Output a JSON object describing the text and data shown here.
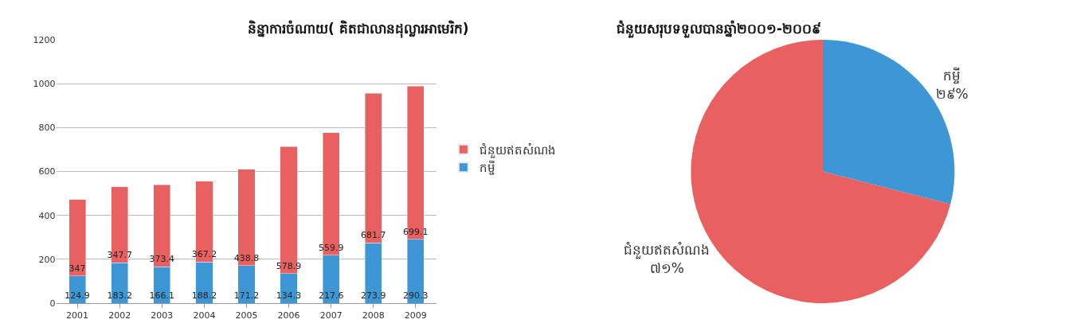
{
  "chart_data": [
    {
      "type": "bar",
      "title": "និន្នាការចំណាយ( គិតជាលានដុល្លារអាមេរិក)",
      "categories": [
        "2001",
        "2002",
        "2003",
        "2004",
        "2005",
        "2006",
        "2007",
        "2008",
        "2009"
      ],
      "stacked": true,
      "ylim": [
        0,
        1200
      ],
      "yticks": [
        0,
        200,
        400,
        600,
        800,
        1000,
        1200
      ],
      "grid": "y",
      "legend": "right",
      "data_labels": true,
      "series": [
        {
          "name": "កម្ចី",
          "color": "#3d97d4",
          "values": [
            124.9,
            183.2,
            166.1,
            188.2,
            171.2,
            134.3,
            217.6,
            273.9,
            290.3
          ]
        },
        {
          "name": "ជំនួយឥតសំណង",
          "color": "#e86060",
          "values": [
            347,
            347.7,
            373.4,
            367.2,
            438.8,
            578.9,
            559.9,
            681.7,
            699.1
          ]
        }
      ]
    },
    {
      "type": "pie",
      "title": "ជំនួយសរុបទទួលបានឆ្នាំ២០០១-២០០៩",
      "categories": [
        "កម្ចី",
        "ជំនួយឥតសំណង"
      ],
      "values": [
        29,
        71
      ],
      "colors": [
        "#3d97d4",
        "#e86060"
      ],
      "value_labels": [
        "២៩%",
        "៧១%"
      ]
    }
  ]
}
